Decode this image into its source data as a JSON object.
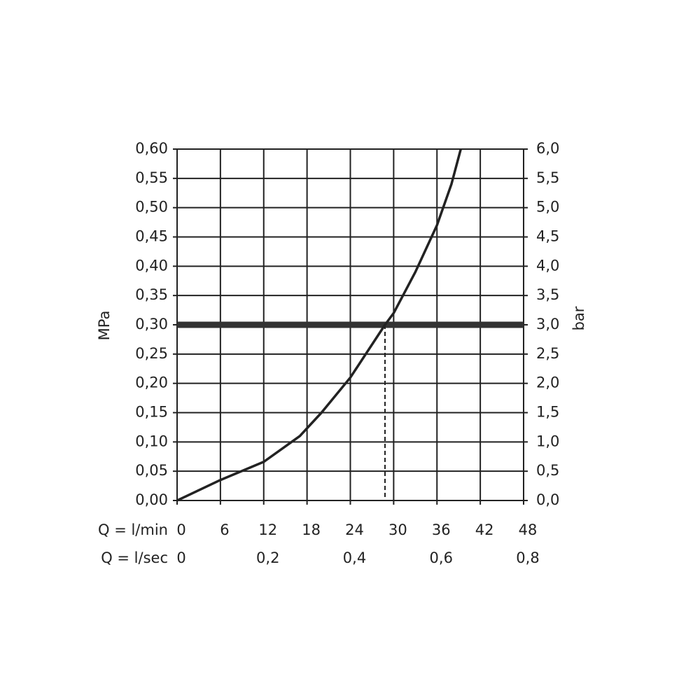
{
  "chart_data": {
    "type": "line",
    "x_label": "Q = l/min",
    "x2_label": "Q = l/sec",
    "y_label": "MPa",
    "y2_label": "bar",
    "x": [
      0,
      6,
      12,
      17,
      20,
      24,
      28.8,
      30,
      33,
      36,
      38,
      39.3
    ],
    "series": [
      {
        "color": "#222222",
        "values": [
          0,
          0.035,
          0.066,
          0.11,
          0.15,
          0.21,
          0.3,
          0.32,
          0.39,
          0.47,
          0.54,
          0.6
        ]
      }
    ],
    "xlim": [
      0,
      48
    ],
    "xticks": [
      0,
      6,
      12,
      18,
      24,
      30,
      36,
      42,
      48
    ],
    "x2lim": [
      0,
      0.8
    ],
    "x2ticks": [
      0,
      {
        "value": 0.2,
        "label": "0,2"
      },
      {
        "value": 0.4,
        "label": "0,4"
      },
      {
        "value": 0.6,
        "label": "0,6"
      },
      {
        "value": 0.8,
        "label": "0,8"
      }
    ],
    "ylim": [
      0,
      0.6
    ],
    "yticks": [
      {
        "value": 0,
        "label": "0,00"
      },
      {
        "value": 0.05,
        "label": "0,05"
      },
      {
        "value": 0.1,
        "label": "0,10"
      },
      {
        "value": 0.15,
        "label": "0,15"
      },
      {
        "value": 0.2,
        "label": "0,20"
      },
      {
        "value": 0.25,
        "label": "0,25"
      },
      {
        "value": 0.3,
        "label": "0,30"
      },
      {
        "value": 0.35,
        "label": "0,35"
      },
      {
        "value": 0.4,
        "label": "0,40"
      },
      {
        "value": 0.45,
        "label": "0,45"
      },
      {
        "value": 0.5,
        "label": "0,50"
      },
      {
        "value": 0.55,
        "label": "0,55"
      },
      {
        "value": 0.6,
        "label": "0,60"
      }
    ],
    "y2lim": [
      0,
      6
    ],
    "y2ticks": [
      {
        "value": 0,
        "label": "0,0"
      },
      {
        "value": 0.5,
        "label": "0,5"
      },
      {
        "value": 1,
        "label": "1,0"
      },
      {
        "value": 1.5,
        "label": "1,5"
      },
      {
        "value": 2,
        "label": "2,0"
      },
      {
        "value": 2.5,
        "label": "2,5"
      },
      {
        "value": 3,
        "label": "3,0"
      },
      {
        "value": 3.5,
        "label": "3,5"
      },
      {
        "value": 4,
        "label": "4,0"
      },
      {
        "value": 4.5,
        "label": "4,5"
      },
      {
        "value": 5,
        "label": "5,0"
      },
      {
        "value": 5.5,
        "label": "5,5"
      },
      {
        "value": 6,
        "label": "6,0"
      }
    ],
    "grid": true,
    "hline": {
      "y": 0.3
    },
    "vline": {
      "x": 28.8,
      "y": 0.3
    }
  }
}
